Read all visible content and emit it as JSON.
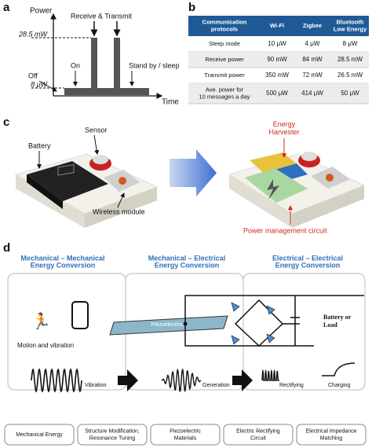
{
  "panel_a": {
    "label": "a",
    "y_axis": "Power",
    "x_axis": "Time",
    "level_high": "28.5 mW",
    "level_low": "8 μW",
    "annotations": {
      "off": "Off",
      "on": "On",
      "receive_transmit": "Receive & Transmit",
      "standby": "Stand by / sleep"
    }
  },
  "panel_b": {
    "label": "b",
    "table": {
      "header": [
        [
          "Communication",
          "protocols"
        ],
        [
          "Wi-Fi"
        ],
        [
          "Zigbee"
        ],
        [
          "Bluetooth",
          "Low Energy"
        ]
      ],
      "rows": [
        [
          [
            "Sleep mode"
          ],
          "10 μW",
          "4 μW",
          "8 μW"
        ],
        [
          [
            "Receive power"
          ],
          "90 mW",
          "84 mW",
          "28.5 mW"
        ],
        [
          [
            "Transmit power"
          ],
          "350 mW",
          "72 mW",
          "26.5 mW"
        ],
        [
          [
            "Ave. power for",
            "10 messages a day"
          ],
          "500 μW",
          "414 μW",
          "50 μW"
        ]
      ]
    }
  },
  "panel_c": {
    "label": "c",
    "battery": "Battery",
    "sensor": "Sensor",
    "wireless": "Wireless module",
    "harvester": [
      "Energy",
      "Harvester"
    ],
    "pmc": "Power management circuit"
  },
  "panel_d": {
    "label": "d",
    "headers": [
      [
        "Mechanical – Mechanical",
        "Energy Conversion"
      ],
      [
        "Mechanical – Electrical",
        "Energy Conversion"
      ],
      [
        "Electrical – Electrical",
        "Energy Conversion"
      ]
    ],
    "motion": "Motion and vibration",
    "piezo": "Piezoelectrics",
    "load": [
      "Battery or",
      "Load"
    ],
    "vibration": "Vibration",
    "generation": "Generation",
    "rectifying": "Rectifying",
    "charging": "Charging",
    "bottom": [
      [
        "Mechanical Energy"
      ],
      [
        "Structure Modification,",
        "Resonance Tuning"
      ],
      [
        "Piezoelectric",
        "Materials"
      ],
      [
        "Electric Rectifying",
        "Circuit"
      ],
      [
        "Electrical Impedance",
        "Matching"
      ]
    ]
  }
}
